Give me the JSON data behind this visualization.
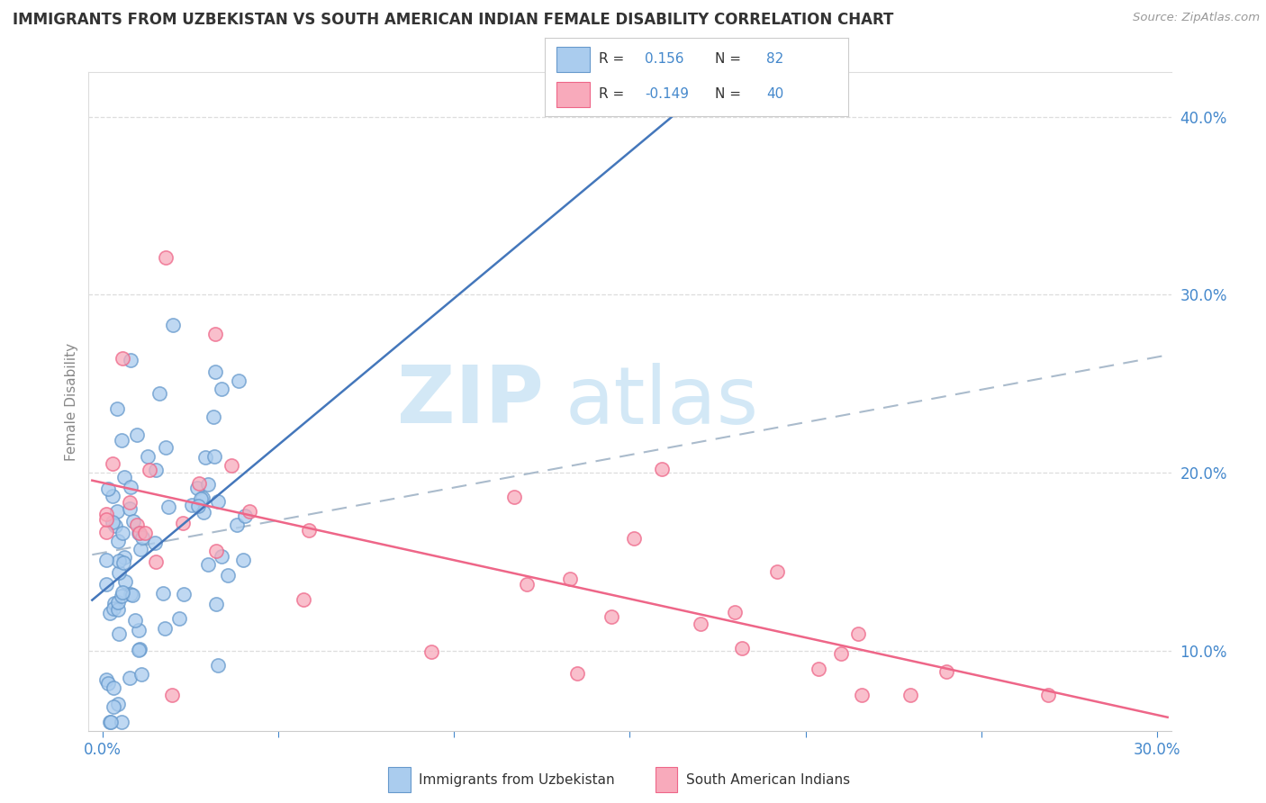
{
  "title": "IMMIGRANTS FROM UZBEKISTAN VS SOUTH AMERICAN INDIAN FEMALE DISABILITY CORRELATION CHART",
  "source": "Source: ZipAtlas.com",
  "ylabel": "Female Disability",
  "xlim": [
    0.0,
    0.3
  ],
  "ylim": [
    0.055,
    0.425
  ],
  "right_yticks": [
    0.1,
    0.2,
    0.3,
    0.4
  ],
  "right_ytick_labels": [
    "10.0%",
    "20.0%",
    "30.0%",
    "40.0%"
  ],
  "xticks": [
    0.0,
    0.05,
    0.1,
    0.15,
    0.2,
    0.25,
    0.3
  ],
  "xtick_labels": [
    "0.0%",
    "",
    "",
    "",
    "",
    "",
    "30.0%"
  ],
  "blue_face": "#aaccee",
  "blue_edge": "#6699cc",
  "pink_face": "#f8aabb",
  "pink_edge": "#ee6688",
  "blue_trend_color": "#4477bb",
  "pink_trend_color": "#ee6688",
  "dash_trend_color": "#aabbcc",
  "text_color": "#4488cc",
  "grid_color": "#dddddd",
  "watermark_color": "#cce5f5",
  "r_blue": 0.156,
  "n_blue": 82,
  "r_pink": -0.149,
  "n_pink": 40,
  "legend_label_blue": "Immigrants from Uzbekistan",
  "legend_label_pink": "South American Indians"
}
